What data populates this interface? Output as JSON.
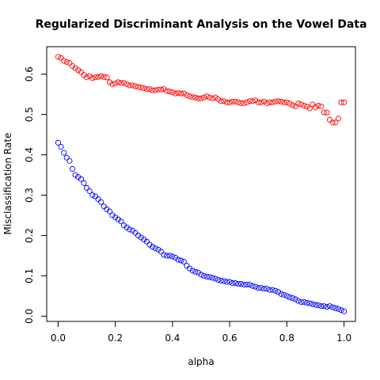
{
  "chart_data": {
    "type": "scatter",
    "title": "Regularized Discriminant Analysis on the Vowel Data",
    "xlabel": "alpha",
    "ylabel": "Misclassification Rate",
    "xlim": [
      -0.04,
      1.04
    ],
    "ylim": [
      -0.013,
      0.668
    ],
    "x_ticks": [
      "0.0",
      "0.2",
      "0.4",
      "0.6",
      "0.8",
      "1.0"
    ],
    "y_ticks": [
      "0.0",
      "0.1",
      "0.2",
      "0.3",
      "0.4",
      "0.5",
      "0.6"
    ],
    "marker": "open-circle",
    "grid": false,
    "legend": "none",
    "x": [
      0.0,
      0.01,
      0.02,
      0.03,
      0.04,
      0.05,
      0.06,
      0.07,
      0.08,
      0.09,
      0.1,
      0.11,
      0.12,
      0.13,
      0.14,
      0.15,
      0.16,
      0.17,
      0.18,
      0.19,
      0.2,
      0.21,
      0.22,
      0.23,
      0.24,
      0.25,
      0.26,
      0.27,
      0.28,
      0.29,
      0.3,
      0.31,
      0.32,
      0.33,
      0.34,
      0.35,
      0.36,
      0.37,
      0.38,
      0.39,
      0.4,
      0.41,
      0.42,
      0.43,
      0.44,
      0.45,
      0.46,
      0.47,
      0.48,
      0.49,
      0.5,
      0.51,
      0.52,
      0.53,
      0.54,
      0.55,
      0.56,
      0.57,
      0.58,
      0.59,
      0.6,
      0.61,
      0.62,
      0.63,
      0.64,
      0.65,
      0.66,
      0.67,
      0.68,
      0.69,
      0.7,
      0.71,
      0.72,
      0.73,
      0.74,
      0.75,
      0.76,
      0.77,
      0.78,
      0.79,
      0.8,
      0.81,
      0.82,
      0.83,
      0.84,
      0.85,
      0.86,
      0.87,
      0.88,
      0.89,
      0.9,
      0.91,
      0.92,
      0.93,
      0.94,
      0.95,
      0.96,
      0.97,
      0.98,
      0.99,
      1.0
    ],
    "series": [
      {
        "color": "#ff0000",
        "values": [
          0.643,
          0.64,
          0.633,
          0.63,
          0.628,
          0.62,
          0.615,
          0.61,
          0.605,
          0.598,
          0.592,
          0.595,
          0.59,
          0.592,
          0.593,
          0.595,
          0.593,
          0.592,
          0.58,
          0.575,
          0.577,
          0.58,
          0.578,
          0.578,
          0.575,
          0.572,
          0.572,
          0.57,
          0.568,
          0.567,
          0.565,
          0.563,
          0.563,
          0.56,
          0.56,
          0.562,
          0.562,
          0.563,
          0.558,
          0.557,
          0.555,
          0.552,
          0.553,
          0.552,
          0.552,
          0.548,
          0.545,
          0.543,
          0.542,
          0.54,
          0.54,
          0.542,
          0.545,
          0.542,
          0.54,
          0.542,
          0.538,
          0.533,
          0.533,
          0.53,
          0.53,
          0.532,
          0.532,
          0.53,
          0.528,
          0.528,
          0.53,
          0.533,
          0.533,
          0.535,
          0.53,
          0.53,
          0.532,
          0.528,
          0.53,
          0.53,
          0.532,
          0.533,
          0.532,
          0.53,
          0.53,
          0.527,
          0.523,
          0.52,
          0.527,
          0.525,
          0.522,
          0.52,
          0.515,
          0.525,
          0.518,
          0.522,
          0.52,
          0.505,
          0.505,
          0.487,
          0.48,
          0.48,
          0.49,
          0.53,
          0.53
        ]
      },
      {
        "color": "#0000ff",
        "values": [
          0.43,
          0.42,
          0.405,
          0.393,
          0.385,
          0.365,
          0.35,
          0.345,
          0.34,
          0.33,
          0.318,
          0.31,
          0.3,
          0.297,
          0.29,
          0.283,
          0.272,
          0.265,
          0.26,
          0.25,
          0.245,
          0.24,
          0.235,
          0.225,
          0.22,
          0.215,
          0.212,
          0.207,
          0.2,
          0.195,
          0.19,
          0.185,
          0.177,
          0.172,
          0.168,
          0.165,
          0.16,
          0.152,
          0.15,
          0.15,
          0.148,
          0.145,
          0.14,
          0.138,
          0.135,
          0.125,
          0.118,
          0.113,
          0.11,
          0.108,
          0.103,
          0.1,
          0.098,
          0.097,
          0.095,
          0.093,
          0.09,
          0.088,
          0.087,
          0.085,
          0.085,
          0.082,
          0.082,
          0.08,
          0.08,
          0.078,
          0.078,
          0.078,
          0.075,
          0.073,
          0.07,
          0.07,
          0.068,
          0.068,
          0.065,
          0.065,
          0.063,
          0.06,
          0.055,
          0.053,
          0.05,
          0.047,
          0.045,
          0.042,
          0.038,
          0.035,
          0.035,
          0.033,
          0.032,
          0.03,
          0.028,
          0.027,
          0.025,
          0.025,
          0.023,
          0.025,
          0.022,
          0.02,
          0.018,
          0.015,
          0.012
        ]
      }
    ]
  }
}
